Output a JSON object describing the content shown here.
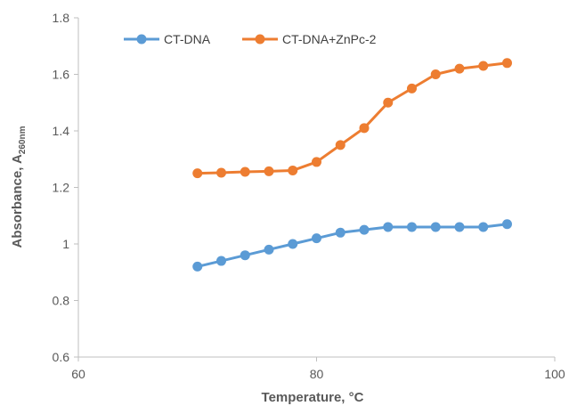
{
  "chart_data": {
    "type": "line",
    "xlabel": "Temperature, °C",
    "ylabel_main": "Absorbance, A",
    "ylabel_sub": "260nm",
    "xlim": [
      60,
      100
    ],
    "ylim": [
      0.6,
      1.8
    ],
    "xticks": [
      60,
      80,
      100
    ],
    "yticks": [
      0.6,
      0.8,
      1,
      1.2,
      1.4,
      1.6,
      1.8
    ],
    "grid": false,
    "legend_position": "top-left",
    "series": [
      {
        "name": "CT-DNA",
        "color": "#5B9BD5",
        "x": [
          70,
          72,
          74,
          76,
          78,
          80,
          82,
          84,
          86,
          88,
          90,
          92,
          94,
          96
        ],
        "y": [
          0.92,
          0.94,
          0.96,
          0.98,
          1.0,
          1.02,
          1.04,
          1.05,
          1.06,
          1.06,
          1.06,
          1.06,
          1.06,
          1.07
        ]
      },
      {
        "name": "CT-DNA+ZnPc-2",
        "color": "#ED7D31",
        "x": [
          70,
          72,
          74,
          76,
          78,
          80,
          82,
          84,
          86,
          88,
          90,
          92,
          94,
          96
        ],
        "y": [
          1.25,
          1.252,
          1.255,
          1.257,
          1.26,
          1.29,
          1.35,
          1.41,
          1.5,
          1.55,
          1.6,
          1.62,
          1.63,
          1.64
        ]
      }
    ]
  }
}
